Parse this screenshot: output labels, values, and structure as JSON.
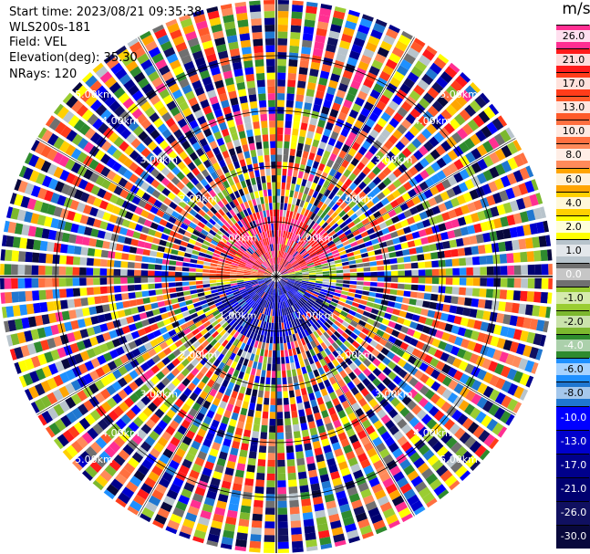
{
  "header": {
    "start_time": "Start time: 2023/08/21 09:35:38",
    "instrument": "WLS200s-181",
    "field": "Field: VEL",
    "elevation": "Elevation(deg): 35.30",
    "nrays": "NRays: 120"
  },
  "range_rings": [
    "1.00km",
    "2.00km",
    "3.00km",
    "4.00km",
    "5.00km"
  ],
  "colorbar": {
    "unit": "m/s",
    "levels": [
      {
        "label": "26.0",
        "color": "#ff2f92"
      },
      {
        "label": "21.0",
        "color": "#ff1a1a"
      },
      {
        "label": "17.0",
        "color": "#ff3c1a"
      },
      {
        "label": "13.0",
        "color": "#ff5a2a"
      },
      {
        "label": "10.0",
        "color": "#ff7040"
      },
      {
        "label": "8.0",
        "color": "#ff8a5a"
      },
      {
        "label": "6.0",
        "color": "#ffa500"
      },
      {
        "label": "4.0",
        "color": "#ffd000"
      },
      {
        "label": "2.0",
        "color": "#ffff00"
      },
      {
        "label": "1.0",
        "color": "#b8c4cc"
      },
      {
        "label": "0.0",
        "color": "#707070"
      },
      {
        "label": "-1.0",
        "color": "#9acd32"
      },
      {
        "label": "-2.0",
        "color": "#7cb82e"
      },
      {
        "label": "-4.0",
        "color": "#2e8b2e"
      },
      {
        "label": "-6.0",
        "color": "#1e90ff"
      },
      {
        "label": "-8.0",
        "color": "#1f77d0"
      },
      {
        "label": "-10.0",
        "color": "#0000ff"
      },
      {
        "label": "-13.0",
        "color": "#0000cc"
      },
      {
        "label": "-17.0",
        "color": "#00008b"
      },
      {
        "label": "-21.0",
        "color": "#000070"
      },
      {
        "label": "-26.0",
        "color": "#101060"
      },
      {
        "label": "-30.0",
        "color": "#08083c"
      }
    ]
  }
}
